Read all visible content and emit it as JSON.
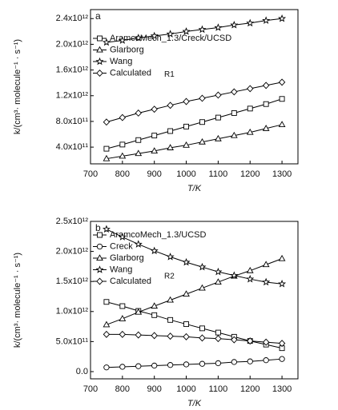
{
  "chart_data": [
    {
      "type": "line",
      "panel_label": "a",
      "annotation": "R1",
      "legend": "upper left",
      "x_label": "T/K",
      "y_label": "k/(cm³· molecule⁻¹ · s⁻¹)",
      "x": [
        750,
        800,
        850,
        900,
        950,
        1000,
        1050,
        1100,
        1150,
        1200,
        1250,
        1300
      ],
      "xlim": [
        700,
        1350
      ],
      "xticks": [
        700,
        800,
        900,
        1000,
        1100,
        1200,
        1300
      ],
      "ylim": [
        140000000000,
        2540000000000
      ],
      "yticks": [
        {
          "value": 400000000000,
          "label": "4.0x10¹¹"
        },
        {
          "value": 800000000000,
          "label": "8.0x10¹¹"
        },
        {
          "value": 1200000000000,
          "label": "1.2x10¹²"
        },
        {
          "value": 1600000000000,
          "label": "1.6x10¹²"
        },
        {
          "value": 2000000000000,
          "label": "2.0x10¹²"
        },
        {
          "value": 2400000000000,
          "label": "2.4x10¹²"
        }
      ],
      "series": [
        {
          "name": "AramcoMech_1.3/Creck/UCSD",
          "color": "#000000",
          "marker": "square",
          "values": [
            375000000000,
            440000000000,
            510000000000,
            580000000000,
            650000000000,
            720000000000,
            790000000000,
            860000000000,
            930000000000,
            1000000000000,
            1070000000000,
            1150000000000
          ]
        },
        {
          "name": "Glarborg",
          "color": "#000000",
          "marker": "triangle",
          "values": [
            220000000000,
            260000000000,
            300000000000,
            340000000000,
            390000000000,
            430000000000,
            480000000000,
            530000000000,
            580000000000,
            630000000000,
            690000000000,
            750000000000
          ]
        },
        {
          "name": "Wang",
          "color": "#000000",
          "marker": "star",
          "values": [
            2030000000000,
            2060000000000,
            2100000000000,
            2130000000000,
            2160000000000,
            2200000000000,
            2230000000000,
            2260000000000,
            2300000000000,
            2330000000000,
            2370000000000,
            2400000000000
          ]
        },
        {
          "name": "Calculated",
          "color": "#000000",
          "marker": "diamond",
          "values": [
            790000000000,
            860000000000,
            930000000000,
            990000000000,
            1050000000000,
            1110000000000,
            1160000000000,
            1210000000000,
            1260000000000,
            1310000000000,
            1360000000000,
            1410000000000
          ]
        }
      ]
    },
    {
      "type": "line",
      "panel_label": "b",
      "annotation": "R2",
      "legend": "upper left",
      "x_label": "T/K",
      "y_label": "k/(cm³· molecule⁻¹ · s⁻¹)",
      "x": [
        750,
        800,
        850,
        900,
        950,
        1000,
        1050,
        1100,
        1150,
        1200,
        1250,
        1300
      ],
      "xlim": [
        700,
        1350
      ],
      "xticks": [
        700,
        800,
        900,
        1000,
        1100,
        1200,
        1300
      ],
      "ylim": [
        -120000000000,
        2500000000000
      ],
      "yticks": [
        {
          "value": 0,
          "label": "0.0"
        },
        {
          "value": 500000000000,
          "label": "5.0x10¹¹"
        },
        {
          "value": 1000000000000,
          "label": "1.0x10¹²"
        },
        {
          "value": 1500000000000,
          "label": "1.5x10¹²"
        },
        {
          "value": 2000000000000,
          "label": "2.0x10¹²"
        },
        {
          "value": 2500000000000,
          "label": "2.5x10¹²"
        }
      ],
      "series": [
        {
          "name": "AramcoMech_1.3/UCSD",
          "color": "#000000",
          "marker": "square",
          "values": [
            1160000000000,
            1090000000000,
            1010000000000,
            940000000000,
            860000000000,
            790000000000,
            720000000000,
            650000000000,
            580000000000,
            510000000000,
            450000000000,
            390000000000
          ]
        },
        {
          "name": "Creck",
          "color": "#000000",
          "marker": "circle",
          "values": [
            70000000000,
            80000000000,
            90000000000,
            100000000000,
            110000000000,
            120000000000,
            130000000000,
            140000000000,
            160000000000,
            170000000000,
            190000000000,
            210000000000
          ]
        },
        {
          "name": "Glarborg",
          "color": "#000000",
          "marker": "triangle",
          "values": [
            780000000000,
            880000000000,
            990000000000,
            1090000000000,
            1190000000000,
            1290000000000,
            1390000000000,
            1490000000000,
            1590000000000,
            1680000000000,
            1780000000000,
            1880000000000
          ]
        },
        {
          "name": "Wang",
          "color": "#000000",
          "marker": "star",
          "values": [
            2370000000000,
            2240000000000,
            2120000000000,
            2010000000000,
            1910000000000,
            1820000000000,
            1740000000000,
            1660000000000,
            1600000000000,
            1540000000000,
            1490000000000,
            1460000000000
          ]
        },
        {
          "name": "Calculated",
          "color": "#000000",
          "marker": "diamond",
          "values": [
            620000000000,
            620000000000,
            610000000000,
            600000000000,
            590000000000,
            580000000000,
            560000000000,
            550000000000,
            530000000000,
            510000000000,
            490000000000,
            470000000000
          ]
        }
      ]
    }
  ]
}
